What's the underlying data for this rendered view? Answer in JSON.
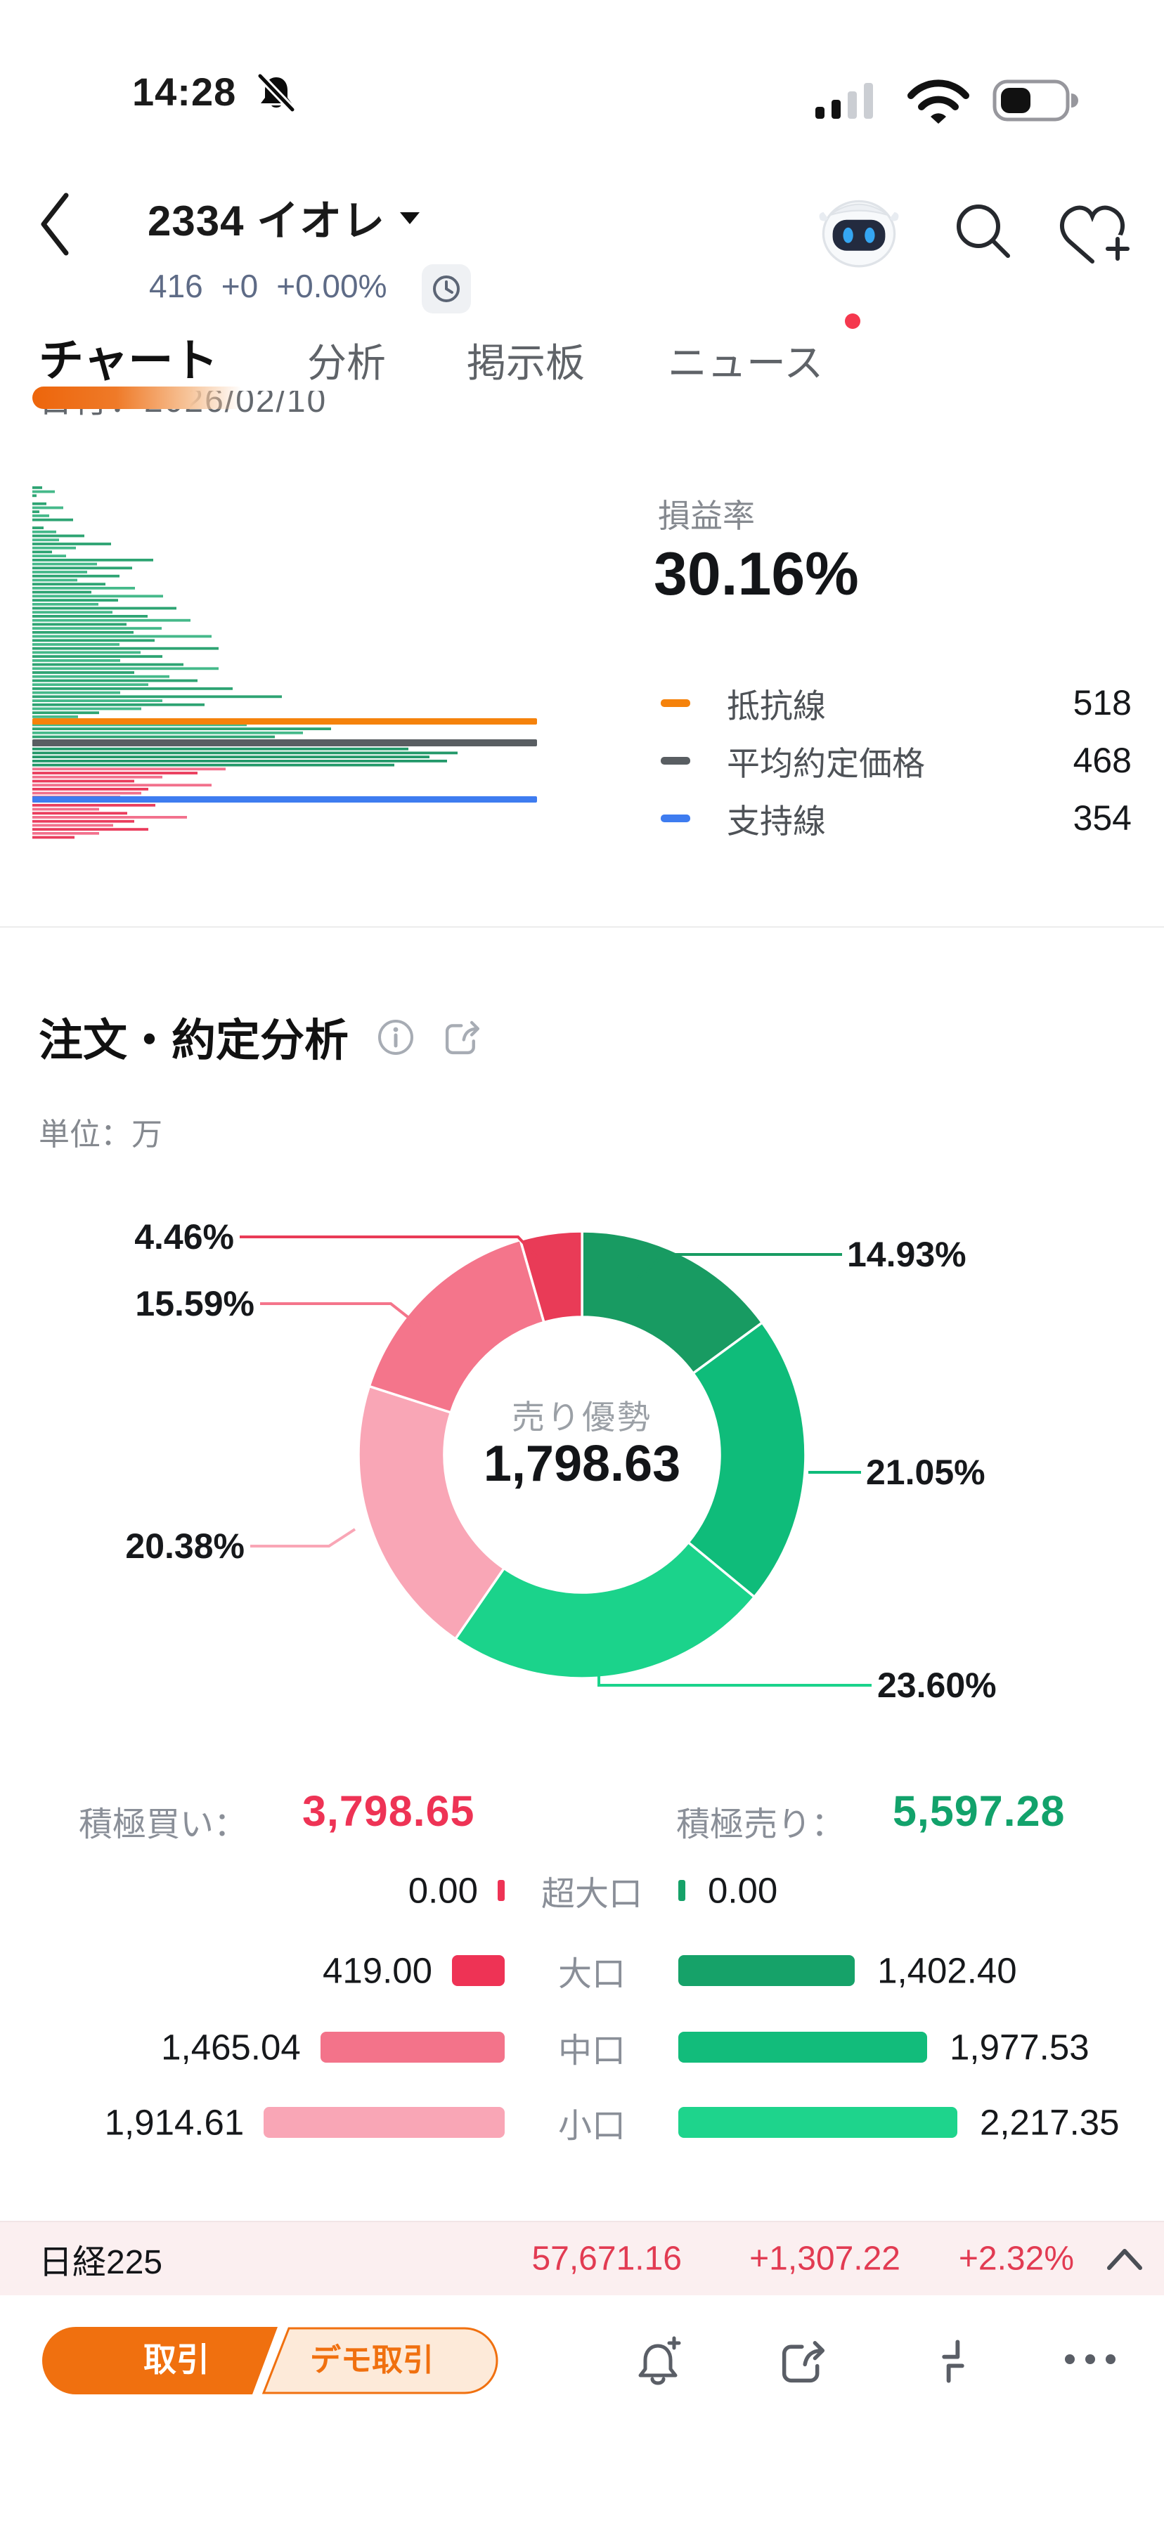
{
  "status_bar": {
    "time": "14:28",
    "icons": [
      "mute-bell",
      "cellular-signal",
      "wifi",
      "battery"
    ]
  },
  "header": {
    "title": "2334 イオレ",
    "price": "416",
    "change": "+0",
    "change_pct": "+0.00%",
    "icons": [
      "back-chevron",
      "caret-down",
      "clock-delayed",
      "ai-robot",
      "search",
      "heart-add"
    ]
  },
  "tabs": {
    "items": [
      {
        "label": "チャート",
        "active": true
      },
      {
        "label": "分析",
        "active": false
      },
      {
        "label": "掲示板",
        "active": false
      },
      {
        "label": "ニュース",
        "active": false,
        "badge_dot": true
      }
    ]
  },
  "date_row": {
    "label": "日付：2026/02/10"
  },
  "profit_panel": {
    "label": "損益率",
    "value": "30.16%",
    "legend": [
      {
        "label": "抵抗線",
        "value": "518",
        "color": "#F5820B"
      },
      {
        "label": "平均約定価格",
        "value": "468",
        "color": "#595E62"
      },
      {
        "label": "支持線",
        "value": "354",
        "color": "#3E7CF0"
      }
    ]
  },
  "order_section": {
    "title": "注文・約定分析",
    "unit": "単位：万"
  },
  "summary": {
    "buy_label": "積極買い：",
    "buy_value": "3,798.65",
    "buy_color": "#EE3355",
    "sell_label": "積極売り：",
    "sell_value": "5,597.28",
    "sell_color": "#12A26B"
  },
  "ticker": {
    "label": "日経225",
    "value": "57,671.16",
    "change": "+1,307.22",
    "change_pct": "+2.32%"
  },
  "bottom_nav": {
    "trade": "取引",
    "demo": "デモ取引",
    "icons": [
      "bell-add",
      "share",
      "shrink",
      "more-dots"
    ]
  },
  "chart_data": [
    {
      "type": "bar",
      "name": "volume_profile",
      "orientation": "horizontal",
      "note": "price-by-volume rows, top = higher price; lengths approximate px",
      "values": [
        14,
        32,
        6,
        0,
        20,
        44,
        10,
        24,
        58,
        0,
        16,
        34,
        74,
        38,
        112,
        62,
        28,
        48,
        172,
        92,
        142,
        78,
        124,
        64,
        104,
        146,
        84,
        186,
        122,
        94,
        205,
        114,
        164,
        225,
        134,
        184,
        144,
        255,
        174,
        124,
        265,
        154,
        185,
        125,
        215,
        265,
        145,
        195,
        235,
        165,
        285,
        125,
        355,
        185,
        245,
        155,
        95,
        65,
        255,
        305,
        425,
        385,
        345,
        295,
        485,
        535,
        605,
        565,
        590,
        515,
        275,
        235,
        185,
        145,
        255,
        165,
        155,
        125,
        105,
        175,
        95,
        135,
        220,
        145,
        115,
        165,
        95,
        60
      ],
      "green_rows_until": 69,
      "dense_green_from": 64,
      "colors": {
        "green_a": "#45B98A",
        "green_b": "#2EA473",
        "green_dense": "#23996A",
        "red_a": "#EA3D5D",
        "red_b": "#F2708C"
      },
      "lines": [
        {
          "label": "抵抗線",
          "value": 518,
          "color": "#F5820B"
        },
        {
          "label": "平均約定価格",
          "value": 468,
          "color": "#595E62"
        },
        {
          "label": "支持線",
          "value": 354,
          "color": "#3E7CF0"
        }
      ]
    },
    {
      "type": "pie",
      "name": "order_distribution_donut",
      "center_label": "売り優勢",
      "center_value": "1,798.63",
      "legend_position": "callout-labels",
      "segments": [
        {
          "label": "14.93%",
          "pct": 14.93,
          "color": "#189B62"
        },
        {
          "label": "21.05%",
          "pct": 21.05,
          "color": "#0FBC7A"
        },
        {
          "label": "23.60%",
          "pct": 23.6,
          "color": "#1BD38B"
        },
        {
          "label": "20.38%",
          "pct": 20.38,
          "color": "#F9A6B6"
        },
        {
          "label": "15.59%",
          "pct": 15.59,
          "color": "#F4758B"
        },
        {
          "label": "4.46%",
          "pct": 4.46,
          "color": "#E93B57"
        }
      ]
    },
    {
      "type": "bar",
      "name": "order_flow_by_size",
      "rows": [
        {
          "label": "超大口",
          "buy_text": "0.00",
          "sell_text": "0.00",
          "buy": 0,
          "sell": 0,
          "buy_color": "#EE3355",
          "sell_color": "#16A269"
        },
        {
          "label": "大口",
          "buy_text": "419.00",
          "sell_text": "1,402.40",
          "buy": 419.0,
          "sell": 1402.4,
          "buy_color": "#EE3355",
          "sell_color": "#16A269"
        },
        {
          "label": "中口",
          "buy_text": "1,465.04",
          "sell_text": "1,977.53",
          "buy": 1465.04,
          "sell": 1977.53,
          "buy_color": "#F3738A",
          "sell_color": "#12BC7B"
        },
        {
          "label": "小口",
          "buy_text": "1,914.61",
          "sell_text": "2,217.35",
          "buy": 1914.61,
          "sell": 2217.35,
          "buy_color": "#F9A6B6",
          "sell_color": "#1ED48C"
        }
      ]
    }
  ]
}
